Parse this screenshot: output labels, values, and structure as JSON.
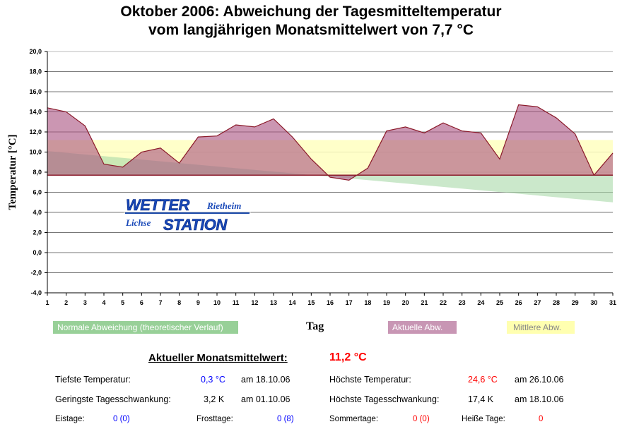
{
  "title_line1": "Oktober 2006: Abweichung der Tagesmitteltemperatur",
  "title_line2": "vom langjährigen Monatsmittelwert von 7,7 °C",
  "chart_data": {
    "type": "area",
    "xlabel": "Tag",
    "ylabel": "Temperatur [°C]",
    "ylim": [
      -4,
      20
    ],
    "yticks": [
      "20,0",
      "18,0",
      "16,0",
      "14,0",
      "12,0",
      "10,0",
      "8,0",
      "6,0",
      "4,0",
      "2,0",
      "0,0",
      "-2,0",
      "-4,0"
    ],
    "ytick_values": [
      20,
      18,
      16,
      14,
      12,
      10,
      8,
      6,
      4,
      2,
      0,
      -2,
      -4
    ],
    "x": [
      1,
      2,
      3,
      4,
      5,
      6,
      7,
      8,
      9,
      10,
      11,
      12,
      13,
      14,
      15,
      16,
      17,
      18,
      19,
      20,
      21,
      22,
      23,
      24,
      25,
      26,
      27,
      28,
      29,
      30,
      31
    ],
    "baseline": 7.7,
    "grid": true,
    "series": [
      {
        "name": "Aktuelle Abw.",
        "color": "#c08cb0",
        "values": [
          14.4,
          14.0,
          12.6,
          8.8,
          8.5,
          10.0,
          10.4,
          8.9,
          11.5,
          11.6,
          12.7,
          12.5,
          13.3,
          11.5,
          9.3,
          7.5,
          7.2,
          8.4,
          12.1,
          12.5,
          11.9,
          12.9,
          12.1,
          11.9,
          9.3,
          14.7,
          14.5,
          13.4,
          11.8,
          7.7,
          9.9
        ]
      },
      {
        "name": "Mittlere Abw.",
        "color": "#ffffc0",
        "value": 11.2
      },
      {
        "name": "Normale Abweichung (theoretischer Verlauf)",
        "color": "#a8d8a8",
        "start": 10.1,
        "end": 5.0
      }
    ],
    "legend": [
      "Normale Abweichung (theoretischer Verlauf)",
      "Aktuelle Abw.",
      "Mittlere Abw."
    ]
  },
  "logo": {
    "line1": "WETTER",
    "line1b": "Rietheim",
    "line2a": "Lichse",
    "line2b": "STATION"
  },
  "stats": {
    "month_mean_label": "Aktueller Monatsmittelwert:",
    "month_mean_value": "11,2 °C",
    "min_temp_label": "Tiefste Temperatur:",
    "min_temp_value": "0,3 °C",
    "min_temp_date": "am 18.10.06",
    "max_temp_label": "Höchste Temperatur:",
    "max_temp_value": "24,6 °C",
    "max_temp_date": "am 26.10.06",
    "min_range_label": "Geringste Tagesschwankung:",
    "min_range_value": "3,2 K",
    "min_range_date": "am 01.10.06",
    "max_range_label": "Höchste Tagesschwankung:",
    "max_range_value": "17,4 K",
    "max_range_date": "am 18.10.06",
    "ice_label": "Eistage:",
    "ice_value": "0 (0)",
    "frost_label": "Frosttage:",
    "frost_value": "0 (8)",
    "summer_label": "Sommertage:",
    "summer_value": "0 (0)",
    "hot_label": "Heiße Tage:",
    "hot_value": "0"
  }
}
